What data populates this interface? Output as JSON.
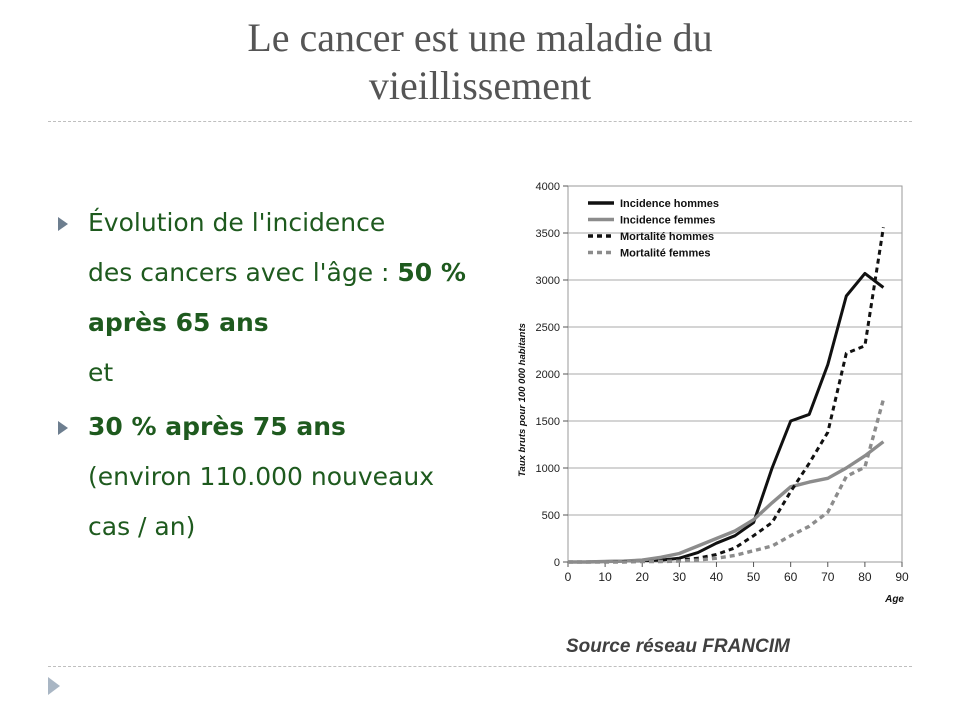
{
  "slide": {
    "title_line1": "Le cancer est une maladie du",
    "title_line2": "vieillissement",
    "bullet1": {
      "line1": "Évolution de l'incidence",
      "line2_plain": "des cancers avec l'âge : ",
      "line2_bold": "50 %",
      "line3_bold": "après 65 ans",
      "line4": "et"
    },
    "bullet2": {
      "line1_bold": "30 % après 75 ans",
      "line2": "(environ 110.000 nouveaux",
      "line3": "cas / an)"
    },
    "source": "Source réseau FRANCIM"
  },
  "colors": {
    "title": "#555555",
    "bullet_text": "#1e5a1e",
    "bullet_marker": "#6d7e8f",
    "series_dark": "#111111",
    "series_gray": "#8c8c8c"
  },
  "chart_data": {
    "type": "line",
    "xlabel": "Age",
    "ylabel": "Taux bruts pour 100 000 habitants",
    "xlim": [
      0,
      90
    ],
    "ylim": [
      0,
      4000
    ],
    "xticks": [
      0,
      10,
      20,
      30,
      40,
      50,
      60,
      70,
      80,
      90
    ],
    "yticks": [
      0,
      500,
      1000,
      1500,
      2000,
      2500,
      3000,
      3500,
      4000
    ],
    "grid": "horizontal",
    "legend_position": "top-left",
    "series": [
      {
        "name": "Incidence hommes",
        "style": "solid-dark",
        "x": [
          0,
          5,
          10,
          15,
          20,
          25,
          30,
          35,
          40,
          45,
          50,
          55,
          60,
          65,
          70,
          75,
          80,
          85
        ],
        "y": [
          0,
          0,
          5,
          10,
          15,
          20,
          40,
          100,
          200,
          280,
          420,
          1000,
          1500,
          1570,
          2100,
          2830,
          3070,
          2920
        ]
      },
      {
        "name": "Incidence femmes",
        "style": "solid-gray",
        "x": [
          0,
          5,
          10,
          15,
          20,
          25,
          30,
          35,
          40,
          45,
          50,
          55,
          60,
          65,
          70,
          75,
          80,
          85
        ],
        "y": [
          0,
          0,
          5,
          10,
          20,
          50,
          90,
          170,
          250,
          330,
          450,
          630,
          800,
          850,
          890,
          1000,
          1130,
          1280
        ]
      },
      {
        "name": "Mortalité hommes",
        "style": "dashed-dark",
        "x": [
          0,
          5,
          10,
          15,
          20,
          25,
          30,
          35,
          40,
          45,
          50,
          55,
          60,
          65,
          70,
          75,
          80,
          85
        ],
        "y": [
          0,
          0,
          0,
          5,
          5,
          10,
          20,
          40,
          80,
          150,
          280,
          420,
          750,
          1050,
          1380,
          2220,
          2300,
          3560
        ]
      },
      {
        "name": "Mortalité femmes",
        "style": "dashed-gray",
        "x": [
          0,
          5,
          10,
          15,
          20,
          25,
          30,
          35,
          40,
          45,
          50,
          55,
          60,
          65,
          70,
          75,
          80,
          85
        ],
        "y": [
          0,
          0,
          0,
          0,
          5,
          5,
          10,
          20,
          40,
          70,
          120,
          170,
          280,
          380,
          530,
          910,
          1010,
          1730
        ]
      }
    ]
  }
}
